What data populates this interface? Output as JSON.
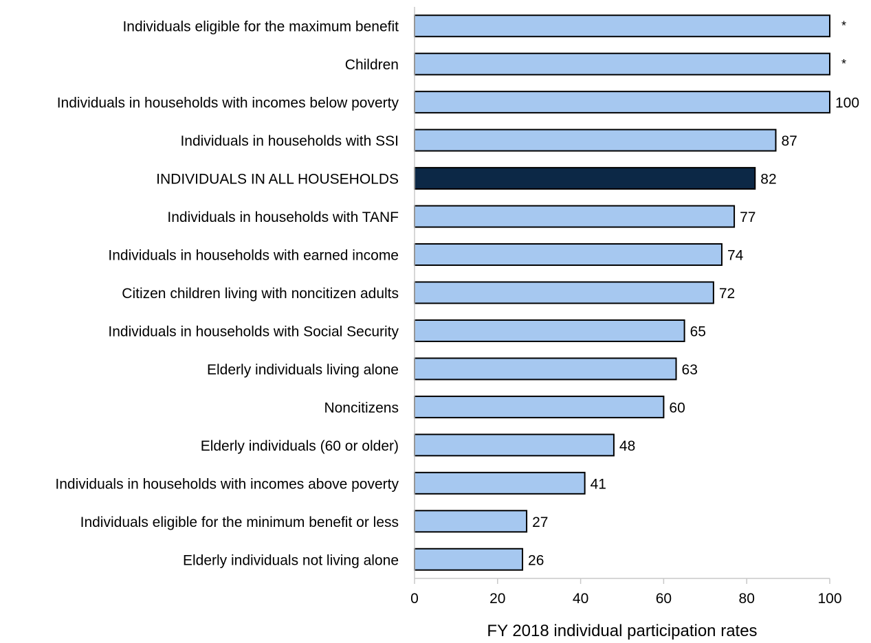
{
  "chart_data": {
    "type": "bar",
    "orientation": "horizontal",
    "categories": [
      "Individuals eligible for the maximum benefit",
      "Children",
      "Individuals in households with incomes below poverty",
      "Individuals in households with SSI",
      "INDIVIDUALS IN ALL HOUSEHOLDS",
      "Individuals in households with TANF",
      "Individuals in households with earned income",
      "Citizen children living with noncitizen adults",
      "Individuals in households with Social Security",
      "Elderly individuals living alone",
      "Noncitizens",
      "Elderly individuals (60 or older)",
      "Individuals in households with incomes above poverty",
      "Individuals eligible for the minimum benefit or less",
      "Elderly individuals not living alone"
    ],
    "values": [
      100,
      100,
      100,
      87,
      82,
      77,
      74,
      72,
      65,
      63,
      60,
      48,
      41,
      27,
      26
    ],
    "data_labels": [
      "*",
      "*",
      "100",
      "87",
      "82",
      "77",
      "74",
      "72",
      "65",
      "63",
      "60",
      "48",
      "41",
      "27",
      "26"
    ],
    "highlight_index": 4,
    "colors": {
      "bar": "#a6c8f0",
      "highlight": "#0c2846",
      "outline": "#000000"
    },
    "xlabel": "FY 2018 individual participation rates",
    "ylabel": "",
    "xlim": [
      0,
      100
    ],
    "xticks": [
      0,
      20,
      40,
      60,
      80,
      100
    ],
    "grid": false,
    "legend": "none"
  }
}
